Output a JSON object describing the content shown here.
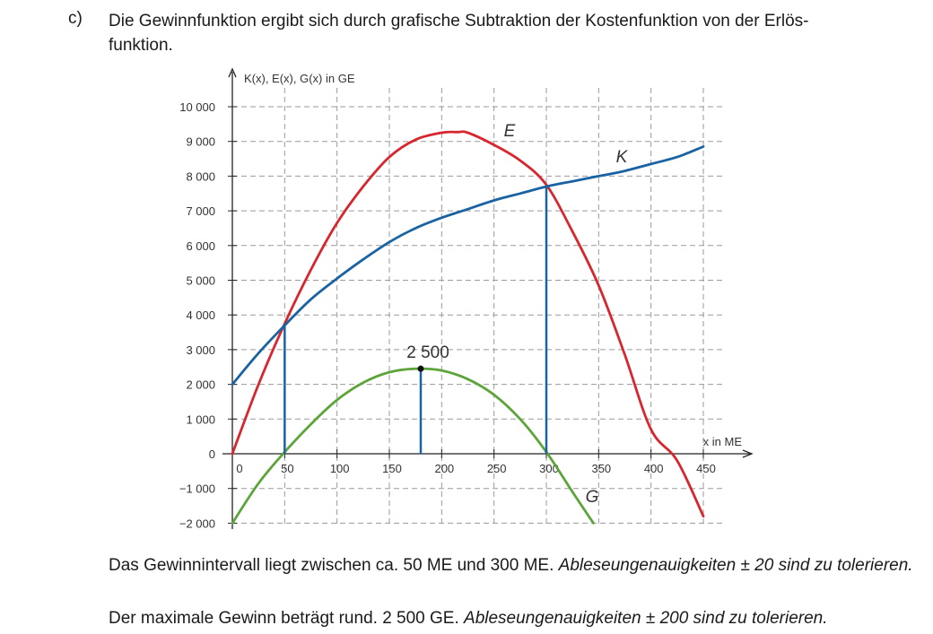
{
  "task": {
    "letter": "c)",
    "line1": "Die Gewinnfunktion ergibt sich durch grafische Subtraktion der Kostenfunktion von der Erlös-",
    "line2": "funktion."
  },
  "chart_data": {
    "type": "line",
    "ylabel": "K(x), E(x), G(x) in GE",
    "xlabel": "x in ME",
    "xlim": [
      0,
      450
    ],
    "ylim": [
      -2000,
      10000
    ],
    "x_ticks": [
      0,
      50,
      100,
      150,
      200,
      250,
      300,
      350,
      400,
      450
    ],
    "x_tick_labels": [
      "0",
      "50",
      "100",
      "150",
      "200",
      "250",
      "300",
      "350",
      "400",
      "450"
    ],
    "y_ticks": [
      10000,
      9000,
      8000,
      7000,
      6000,
      5000,
      4000,
      3000,
      2000,
      1000,
      0,
      -1000,
      -2000
    ],
    "y_tick_labels": [
      "10 000",
      "9 000",
      "8 000",
      "7 000",
      "6 000",
      "5 000",
      "4 000",
      "3 000",
      "2 000",
      "1 000",
      "0",
      "−1 000",
      "−2 000"
    ],
    "grid": true,
    "series": [
      {
        "name": "E",
        "color": "#d7262d",
        "x": [
          0,
          25,
          50,
          75,
          100,
          125,
          150,
          175,
          200,
          215,
          225,
          250,
          275,
          300,
          325,
          350,
          375,
          400,
          425,
          450
        ],
        "y": [
          0,
          2000,
          3750,
          5300,
          6650,
          7700,
          8550,
          9050,
          9250,
          9270,
          9250,
          8900,
          8450,
          7750,
          6400,
          4850,
          2850,
          700,
          -200,
          -1800
        ]
      },
      {
        "name": "K",
        "color": "#1a63a3",
        "x": [
          0,
          25,
          50,
          75,
          100,
          125,
          150,
          175,
          200,
          225,
          250,
          275,
          300,
          325,
          350,
          375,
          400,
          425,
          450
        ],
        "y": [
          2000,
          2900,
          3700,
          4450,
          5050,
          5600,
          6100,
          6500,
          6800,
          7050,
          7300,
          7500,
          7700,
          7850,
          8000,
          8150,
          8350,
          8550,
          8850
        ]
      },
      {
        "name": "G",
        "color": "#5da43a",
        "x": [
          0,
          25,
          50,
          75,
          100,
          125,
          150,
          175,
          200,
          225,
          250,
          275,
          300,
          325,
          345
        ],
        "y": [
          -2000,
          -850,
          50,
          850,
          1550,
          2050,
          2350,
          2450,
          2400,
          2150,
          1700,
          1000,
          50,
          -1100,
          -2000
        ]
      }
    ],
    "markers": [
      {
        "x": 50,
        "y": 3750,
        "color": "#1a63a3"
      },
      {
        "x": 300,
        "y": 7700,
        "color": "#1a63a3"
      },
      {
        "x": 180,
        "y": 2450,
        "color": "#1a63a3",
        "label": "2 500"
      }
    ]
  },
  "answers": {
    "line1_plain": "Das Gewinnintervall liegt zwischen ca. 50 ME und 300 ME. ",
    "line1_italic": "Ableseungenauigkeiten ± 20 sind zu tolerieren.",
    "line2_plain": "Der maximale Gewinn beträgt rund. 2 500 GE. ",
    "line2_italic": "Ableseungenauigkeiten ± 200 sind zu tolerieren."
  }
}
